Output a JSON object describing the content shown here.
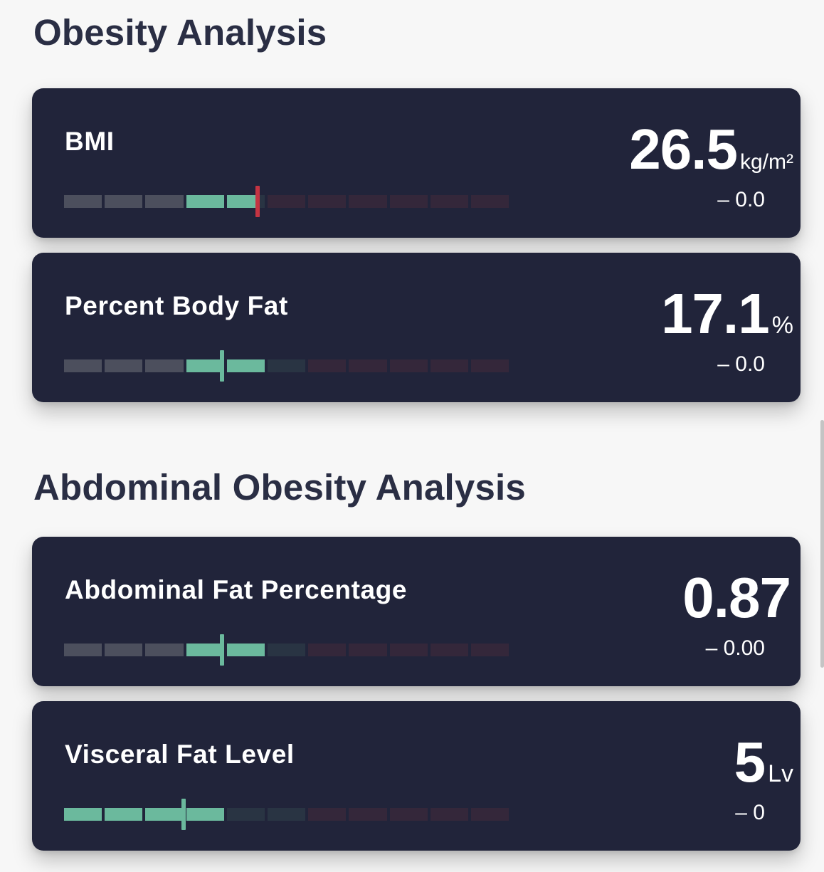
{
  "sections": [
    {
      "title": "Obesity Analysis",
      "metrics": [
        {
          "label": "BMI",
          "value": "26.5",
          "unit": "kg/m²",
          "delta": "– 0.0",
          "level": 0.435,
          "marker_color": "#c43442",
          "bar": [
            "gray",
            "gray",
            "gray",
            "green",
            "green",
            "red",
            "dred",
            "dred",
            "dred",
            "dred",
            "dred"
          ]
        },
        {
          "label": "Percent Body Fat",
          "value": "17.1",
          "unit": "%",
          "delta": "– 0.0",
          "level": 0.355,
          "marker_color": "#6bb99d",
          "bar": [
            "gray",
            "gray",
            "gray",
            "green",
            "green",
            "dteal",
            "dred",
            "dred",
            "dred",
            "dred",
            "dred"
          ]
        }
      ]
    },
    {
      "title": "Abdominal Obesity Analysis",
      "metrics": [
        {
          "label": "Abdominal Fat Percentage",
          "value": "0.87",
          "unit": "",
          "delta": "– 0.00",
          "level": 0.355,
          "marker_color": "#6bb99d",
          "bar": [
            "gray",
            "gray",
            "gray",
            "green",
            "green",
            "dteal",
            "dred",
            "dred",
            "dred",
            "dred",
            "dred"
          ]
        },
        {
          "label": "Visceral Fat Level",
          "value": "5",
          "unit": "Lv",
          "delta": "– 0",
          "level": 0.268,
          "marker_color": "#6bb99d",
          "bar": [
            "green",
            "green",
            "green",
            "green",
            "dteal",
            "dteal",
            "dred",
            "dred",
            "dred",
            "dred",
            "dred"
          ]
        }
      ]
    }
  ],
  "colors": {
    "card_bg": "#21243a",
    "segment_gray": "#4c4f5d",
    "segment_green": "#6bb99d",
    "segment_dark_teal": "#293443",
    "segment_dark_red": "#34273a",
    "marker_red": "#c43442",
    "title_text": "#2a2e44"
  }
}
